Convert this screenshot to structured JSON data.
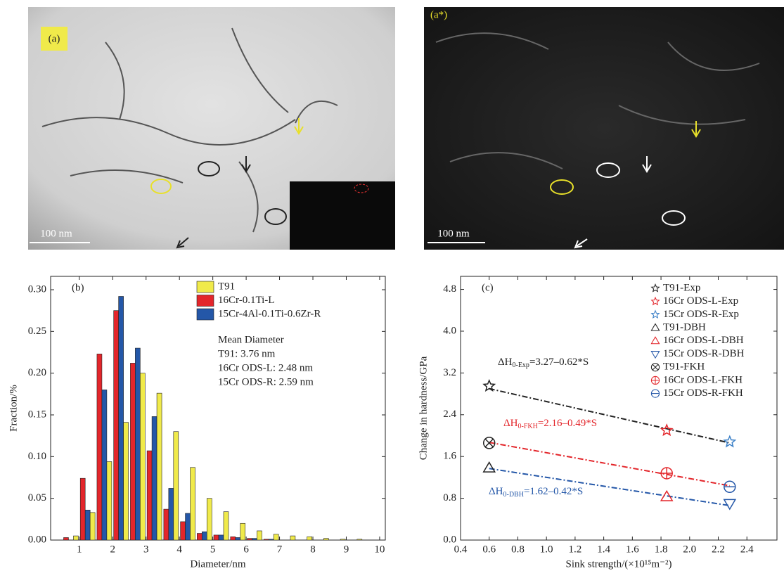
{
  "images": [
    {
      "label": "(a)",
      "scale_bar": "100 nm"
    },
    {
      "label": "(a*)",
      "scale_bar": "100 nm"
    }
  ],
  "chart_data": [
    {
      "type": "bar",
      "panel_label": "(b)",
      "x_label": "Diameter/nm",
      "y_label": "Fraction/%",
      "x": [
        0.75,
        1.25,
        1.75,
        2.25,
        2.75,
        3.25,
        3.75,
        4.25,
        4.75,
        5.25,
        5.75,
        6.25,
        6.75,
        7.25,
        7.75,
        8.25,
        8.75,
        9.25
      ],
      "series": [
        {
          "name": "T91",
          "color": "#f0ea4a",
          "values": [
            0.005,
            0.033,
            0.094,
            0.141,
            0.2,
            0.176,
            0.13,
            0.087,
            0.05,
            0.034,
            0.02,
            0.011,
            0.007,
            0.005,
            0.004,
            0.002,
            0.001,
            0.001
          ]
        },
        {
          "name": "16Cr-0.1Ti-L",
          "color": "#e3262b",
          "values": [
            0.003,
            0.074,
            0.223,
            0.275,
            0.212,
            0.107,
            0.037,
            0.022,
            0.008,
            0.006,
            0.004,
            0.002,
            0.001,
            0,
            0,
            0,
            0,
            0
          ]
        },
        {
          "name": "15Cr-4Al-0.1Ti-0.6Zr-R",
          "color": "#2457a8",
          "values": [
            0,
            0.036,
            0.18,
            0.292,
            0.23,
            0.148,
            0.062,
            0.032,
            0.01,
            0.006,
            0.003,
            0.002,
            0.001,
            0,
            0,
            0,
            0,
            0
          ]
        }
      ],
      "bar_order": [
        1,
        2,
        0
      ],
      "annotations": [
        "Mean Diameter",
        "T91: 3.76 nm",
        "16Cr ODS-L: 2.48 nm",
        "15Cr ODS-R: 2.59 nm"
      ],
      "xlim": [
        0.14,
        10.17
      ],
      "xticks": [
        1,
        2,
        3,
        4,
        5,
        6,
        7,
        8,
        9,
        10
      ],
      "ylim": [
        0,
        0.316
      ],
      "yticks": [
        {
          "value": 0,
          "label": "0.00"
        },
        0.05,
        {
          "value": 0.1,
          "label": "0.10"
        },
        0.15,
        {
          "value": 0.2,
          "label": "0.20"
        },
        0.25,
        {
          "value": 0.3,
          "label": "0.30"
        }
      ]
    },
    {
      "type": "scatter",
      "panel_label": "(c)",
      "x_label": "Sink strength/(×10¹⁵m⁻²)",
      "y_label": "Change in hardness/GPa",
      "series": [
        {
          "name": "T91-Exp",
          "color": "#222222",
          "marker": "star",
          "x": [
            0.6
          ],
          "values": [
            2.95
          ]
        },
        {
          "name": "16Cr ODS-L-Exp",
          "color": "#e3262b",
          "marker": "star",
          "x": [
            1.84
          ],
          "values": [
            2.1
          ]
        },
        {
          "name": "15Cr ODS-R-Exp",
          "color": "#3a7fc7",
          "marker": "star",
          "x": [
            2.28
          ],
          "values": [
            1.88
          ]
        },
        {
          "name": "T91-DBH",
          "color": "#222222",
          "marker": "triangle-up",
          "x": [
            0.6
          ],
          "values": [
            1.38
          ]
        },
        {
          "name": "16Cr ODS-L-DBH",
          "color": "#e3262b",
          "marker": "triangle-up",
          "x": [
            1.84
          ],
          "values": [
            0.83
          ]
        },
        {
          "name": "15Cr ODS-R-DBH",
          "color": "#2457a8",
          "marker": "triangle-down",
          "x": [
            2.28
          ],
          "values": [
            0.7
          ]
        },
        {
          "name": "T91-FKH",
          "color": "#222222",
          "marker": "circle-x",
          "x": [
            0.6
          ],
          "values": [
            1.86
          ]
        },
        {
          "name": "16Cr ODS-L-FKH",
          "color": "#e3262b",
          "marker": "circle-plus",
          "x": [
            1.84
          ],
          "values": [
            1.28
          ]
        },
        {
          "name": "15Cr ODS-R-FKH",
          "color": "#2457a8",
          "marker": "circle-minus",
          "x": [
            2.28
          ],
          "values": [
            1.02
          ]
        }
      ],
      "fits": [
        {
          "color": "#222222",
          "x": [
            0.6,
            2.28
          ],
          "values": [
            2.9,
            1.86
          ],
          "text": "ΔH",
          "subscript": "0-Exp",
          "equation": "=3.27–0.62*S"
        },
        {
          "color": "#e3262b",
          "x": [
            0.6,
            2.28
          ],
          "values": [
            1.87,
            1.04
          ],
          "text": "ΔH",
          "subscript": "0-FKH",
          "equation": "=2.16–0.49*S"
        },
        {
          "color": "#2457a8",
          "x": [
            0.6,
            2.28
          ],
          "values": [
            1.37,
            0.66
          ],
          "text": "ΔH",
          "subscript": "0-DBH",
          "equation": "=1.62–0.42*S"
        }
      ],
      "xlim": [
        0.4,
        2.61
      ],
      "xticks": [
        0.4,
        0.6,
        0.8,
        {
          "value": 1,
          "label": "1.0"
        },
        1.2,
        1.4,
        1.6,
        1.8,
        {
          "value": 2,
          "label": "2.0"
        },
        2.2,
        2.4
      ],
      "ylim": [
        0,
        5.05
      ],
      "yticks": [
        {
          "value": 0,
          "label": "0.0"
        },
        0.8,
        1.6,
        2.4,
        3.2,
        {
          "value": 4,
          "label": "4.0"
        },
        4.8
      ]
    }
  ]
}
